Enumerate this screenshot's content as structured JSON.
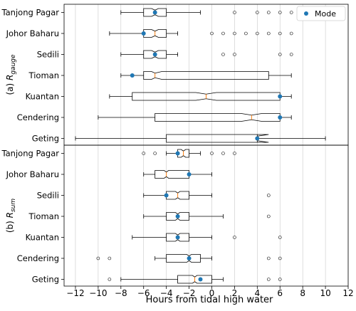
{
  "chart_data": {
    "type": "box",
    "xlabel": "Hours from tidal high water",
    "xlim": [
      -13,
      12
    ],
    "xticks": [
      -12,
      -10,
      -8,
      -6,
      -4,
      -2,
      0,
      2,
      4,
      6,
      8,
      10,
      12
    ],
    "xtick_labels": [
      "−12",
      "−10",
      "−8",
      "−6",
      "−4",
      "−2",
      "0",
      "2",
      "4",
      "6",
      "8",
      "10",
      "12"
    ],
    "grid": "vertical",
    "legend": {
      "position": "top-right",
      "entries": [
        "Mode"
      ]
    },
    "colors": {
      "mode": "#1f77b4",
      "median": "#ff7f0e",
      "box": "#000000",
      "grid": "#b0b0b0"
    },
    "panels": [
      {
        "label_prefix": "(a) ",
        "label_var": "R",
        "label_sub": "gauge",
        "stations": [
          {
            "name": "Tanjong Pagar",
            "whisker_low": -8,
            "q1": -6,
            "median": -5,
            "q3": -4,
            "whisker_high": -1,
            "notch_low": -5.3,
            "notch_high": -4.7,
            "mode": -5,
            "outliers": [
              2,
              4,
              5,
              6,
              7
            ]
          },
          {
            "name": "Johor Baharu",
            "whisker_low": -9,
            "q1": -6,
            "median": -5,
            "q3": -4,
            "whisker_high": -3,
            "notch_low": -5.3,
            "notch_high": -4.7,
            "mode": -6,
            "outliers": [
              0,
              1,
              2,
              3,
              4,
              5,
              6,
              7
            ]
          },
          {
            "name": "Sedili",
            "whisker_low": -8,
            "q1": -6,
            "median": -5,
            "q3": -4,
            "whisker_high": -3,
            "notch_low": -5.3,
            "notch_high": -4.7,
            "mode": -5,
            "outliers": [
              1,
              2,
              6,
              7
            ]
          },
          {
            "name": "Tioman",
            "whisker_low": -8,
            "q1": -6,
            "median": -5,
            "q3": 5,
            "whisker_high": 7,
            "notch_low": -5.3,
            "notch_high": -4.4,
            "mode": -7,
            "outliers": []
          },
          {
            "name": "Kuantan",
            "whisker_low": -9,
            "q1": -7,
            "median": -0.5,
            "q3": 6,
            "whisker_high": 7,
            "notch_low": -1.4,
            "notch_high": 0.4,
            "mode": 6,
            "outliers": []
          },
          {
            "name": "Cendering",
            "whisker_low": -10,
            "q1": -5,
            "median": 3.5,
            "q3": 6,
            "whisker_high": 7,
            "notch_low": 2.6,
            "notch_high": 4.4,
            "mode": 6,
            "outliers": []
          },
          {
            "name": "Geting",
            "whisker_low": -12,
            "q1": -4,
            "median": 4,
            "q3": 4,
            "whisker_high": 10,
            "notch_low": 4,
            "notch_high": 5,
            "mode": 4,
            "outliers": []
          }
        ]
      },
      {
        "label_prefix": "(b) ",
        "label_var": "R",
        "label_sub": "sum",
        "stations": [
          {
            "name": "Tanjong Pagar",
            "whisker_low": -4,
            "q1": -3,
            "median": -2.5,
            "q3": -2,
            "whisker_high": -1,
            "notch_low": -2.7,
            "notch_high": -2.3,
            "mode": -3,
            "outliers": [
              -6,
              -5,
              0,
              1,
              2
            ]
          },
          {
            "name": "Johor Baharu",
            "whisker_low": -6,
            "q1": -5,
            "median": -4,
            "q3": -2,
            "whisker_high": 0,
            "notch_low": -4.2,
            "notch_high": -3.8,
            "mode": -2,
            "outliers": []
          },
          {
            "name": "Sedili",
            "whisker_low": -6,
            "q1": -4,
            "median": -3,
            "q3": -2,
            "whisker_high": 0,
            "notch_low": -3.2,
            "notch_high": -2.8,
            "mode": -4,
            "outliers": [
              5
            ]
          },
          {
            "name": "Tioman",
            "whisker_low": -6,
            "q1": -4,
            "median": -3,
            "q3": -2,
            "whisker_high": 1,
            "notch_low": -3.2,
            "notch_high": -2.8,
            "mode": -3,
            "outliers": [
              5
            ]
          },
          {
            "name": "Kuantan",
            "whisker_low": -7,
            "q1": -4,
            "median": -3,
            "q3": -2,
            "whisker_high": 0,
            "notch_low": -3.2,
            "notch_high": -2.8,
            "mode": -3,
            "outliers": [
              2,
              6
            ]
          },
          {
            "name": "Cendering",
            "whisker_low": -5,
            "q1": -4,
            "median": -2,
            "q3": -1,
            "whisker_high": 0,
            "notch_low": -2.2,
            "notch_high": -1.8,
            "mode": -2,
            "outliers": [
              -10,
              -9,
              5,
              6
            ]
          },
          {
            "name": "Geting",
            "whisker_low": -8,
            "q1": -3,
            "median": -1.5,
            "q3": 0,
            "whisker_high": 1,
            "notch_low": -1.7,
            "notch_high": -1.3,
            "mode": -1,
            "outliers": [
              -9,
              5,
              6
            ]
          }
        ]
      }
    ]
  }
}
